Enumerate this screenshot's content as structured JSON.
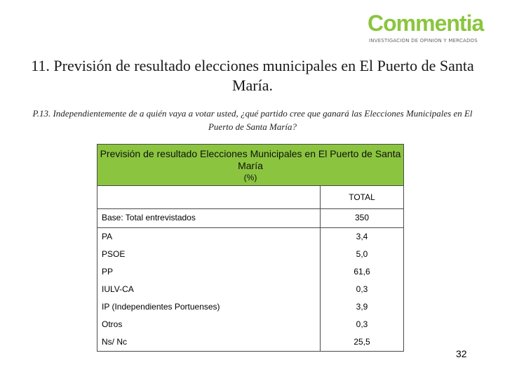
{
  "logo": {
    "name": "Commentia",
    "tagline": "INVESTIGACION DE OPINION Y MERCADOS"
  },
  "title": "11. Previsión de resultado elecciones municipales en El Puerto de Santa María.",
  "question": "P.13. Independientemente de a quién vaya a votar usted, ¿qué partido cree que ganará las Elecciones Municipales en El Puerto de Santa María?",
  "table": {
    "heading": "Previsión de resultado Elecciones Municipales en El Puerto de Santa María",
    "unit": "(%)",
    "column": "TOTAL",
    "base_label": "Base: Total entrevistados",
    "base_value": "350",
    "rows": [
      {
        "label": "PA",
        "value": "3,4"
      },
      {
        "label": "PSOE",
        "value": "5,0"
      },
      {
        "label": "PP",
        "value": "61,6"
      },
      {
        "label": "IULV-CA",
        "value": "0,3"
      },
      {
        "label": "IP (Independientes Portuenses)",
        "value": "3,9"
      },
      {
        "label": "Otros",
        "value": "0,3"
      },
      {
        "label": "Ns/ Nc",
        "value": "25,5"
      }
    ]
  },
  "page_number": "32",
  "colors": {
    "brand_green": "#8bc53f"
  }
}
